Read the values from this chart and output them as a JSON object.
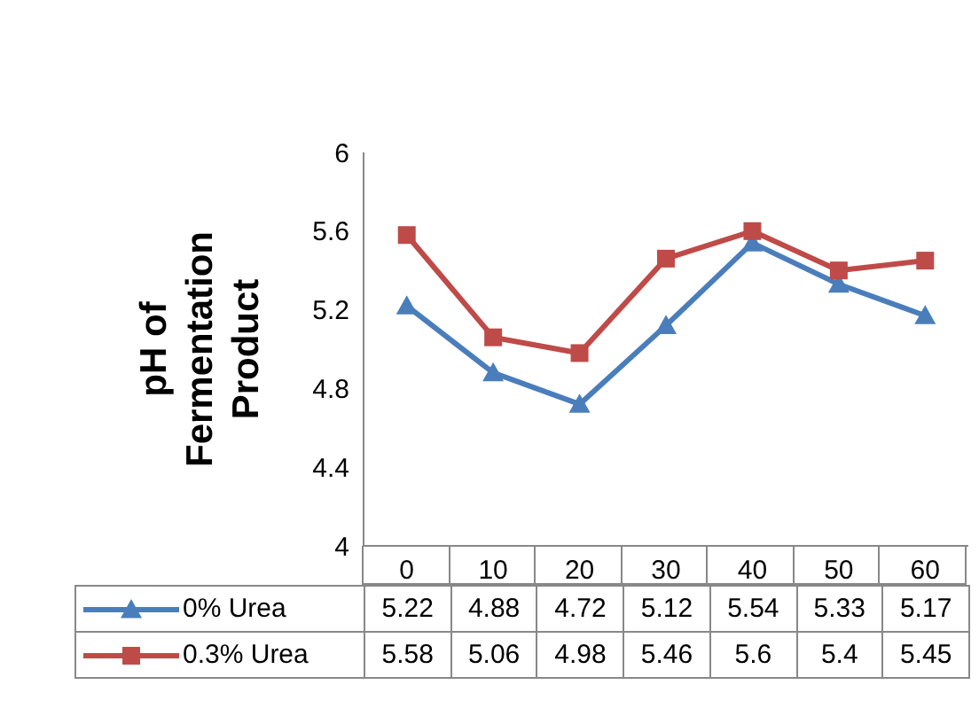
{
  "chart_data": {
    "type": "line",
    "ylabel": "pH of Fermentation Product",
    "categories": [
      "0",
      "10",
      "20",
      "30",
      "40",
      "50",
      "60"
    ],
    "series": [
      {
        "name": "0% Urea",
        "color": "#4a7ebb",
        "marker": "triangle",
        "values": [
          5.22,
          4.88,
          4.72,
          5.12,
          5.54,
          5.33,
          5.17
        ]
      },
      {
        "name": "0.3% Urea",
        "color": "#be4b48",
        "marker": "square",
        "values": [
          5.58,
          5.06,
          4.98,
          5.46,
          5.6,
          5.4,
          5.45
        ]
      }
    ],
    "ylim": [
      4,
      6
    ],
    "yticks": [
      4,
      4.4,
      4.8,
      5.2,
      5.6,
      6
    ],
    "legend": "bottom",
    "data_labels": true
  }
}
